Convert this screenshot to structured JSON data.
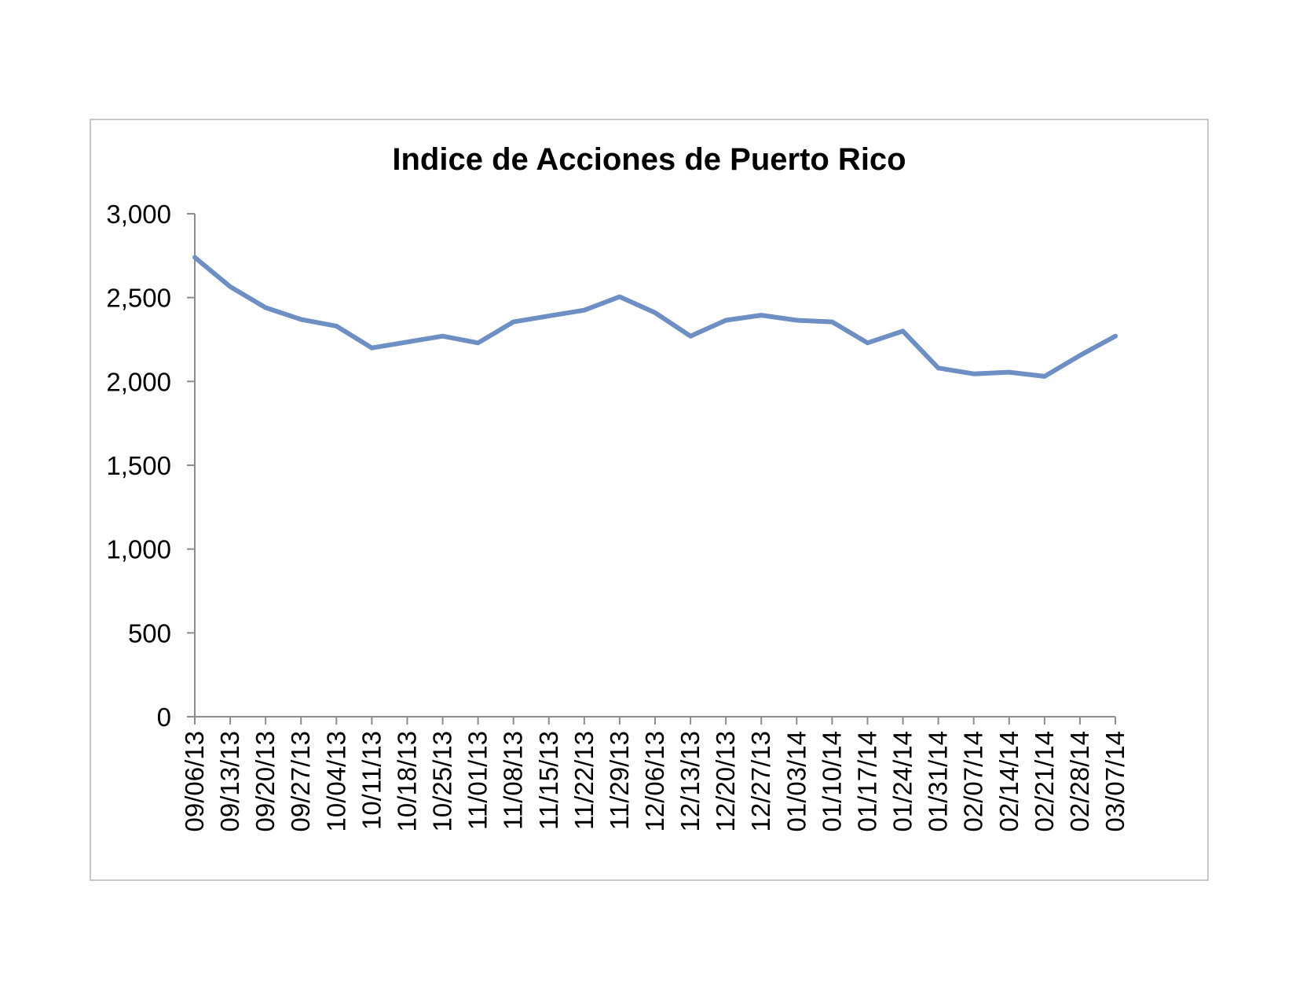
{
  "chart_data": {
    "type": "line",
    "title": "Indice de Acciones de Puerto Rico",
    "xlabel": "",
    "ylabel": "",
    "ylim": [
      0,
      3000
    ],
    "yticks": [
      0,
      500,
      1000,
      1500,
      2000,
      2500,
      3000
    ],
    "ytick_labels": [
      "0",
      "500",
      "1,000",
      "1,500",
      "2,000",
      "2,500",
      "3,000"
    ],
    "grid": false,
    "legend": "none",
    "line_color": "#6d8fc4",
    "categories": [
      "09/06/13",
      "09/13/13",
      "09/20/13",
      "09/27/13",
      "10/04/13",
      "10/11/13",
      "10/18/13",
      "10/25/13",
      "11/01/13",
      "11/08/13",
      "11/15/13",
      "11/22/13",
      "11/29/13",
      "12/06/13",
      "12/13/13",
      "12/20/13",
      "12/27/13",
      "01/03/14",
      "01/10/14",
      "01/17/14",
      "01/24/14",
      "01/31/14",
      "02/07/14",
      "02/14/14",
      "02/21/14",
      "02/28/14",
      "03/07/14"
    ],
    "series": [
      {
        "values": [
          2740,
          2565,
          2440,
          2370,
          2330,
          2200,
          2235,
          2270,
          2230,
          2355,
          2390,
          2425,
          2505,
          2410,
          2270,
          2365,
          2395,
          2365,
          2355,
          2230,
          2300,
          2080,
          2045,
          2055,
          2030,
          2155,
          2270
        ]
      }
    ]
  }
}
